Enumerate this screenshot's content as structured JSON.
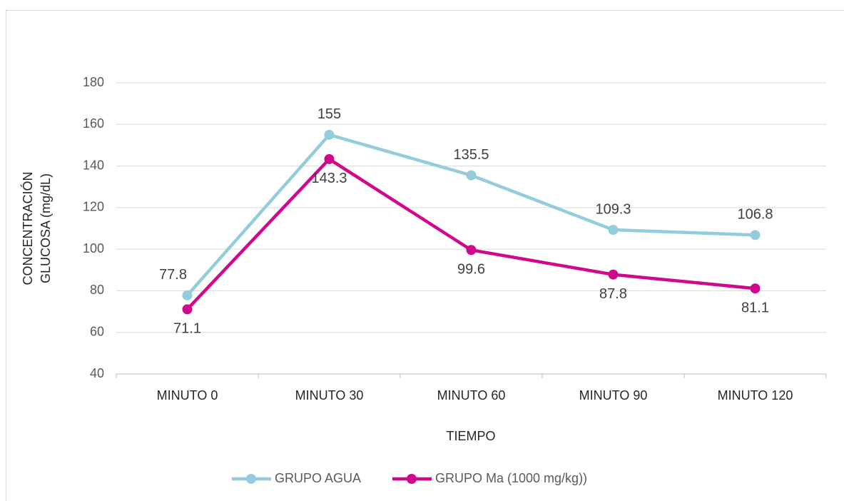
{
  "chart_data": {
    "type": "line",
    "xlabel": "TIEMPO",
    "ylabel": [
      "CONCENTRACIÓN",
      "GLUCOSA (mg/dL)"
    ],
    "categories": [
      "MINUTO 0",
      "MINUTO 30",
      "MINUTO 60",
      "MINUTO 90",
      "MINUTO 120"
    ],
    "series": [
      {
        "name": "GRUPO AGUA",
        "color": "#93cddc",
        "values": [
          77.8,
          155,
          135.5,
          109.3,
          106.8
        ]
      },
      {
        "name": "GRUPO Ma (1000 mg/kg))",
        "color": "#d0098c",
        "values": [
          71.1,
          143.3,
          99.6,
          87.8,
          81.1
        ]
      }
    ],
    "ylim": [
      40,
      180
    ],
    "yticks": [
      40,
      60,
      80,
      100,
      120,
      140,
      160,
      180
    ],
    "grid": true,
    "legend": "bottom"
  }
}
